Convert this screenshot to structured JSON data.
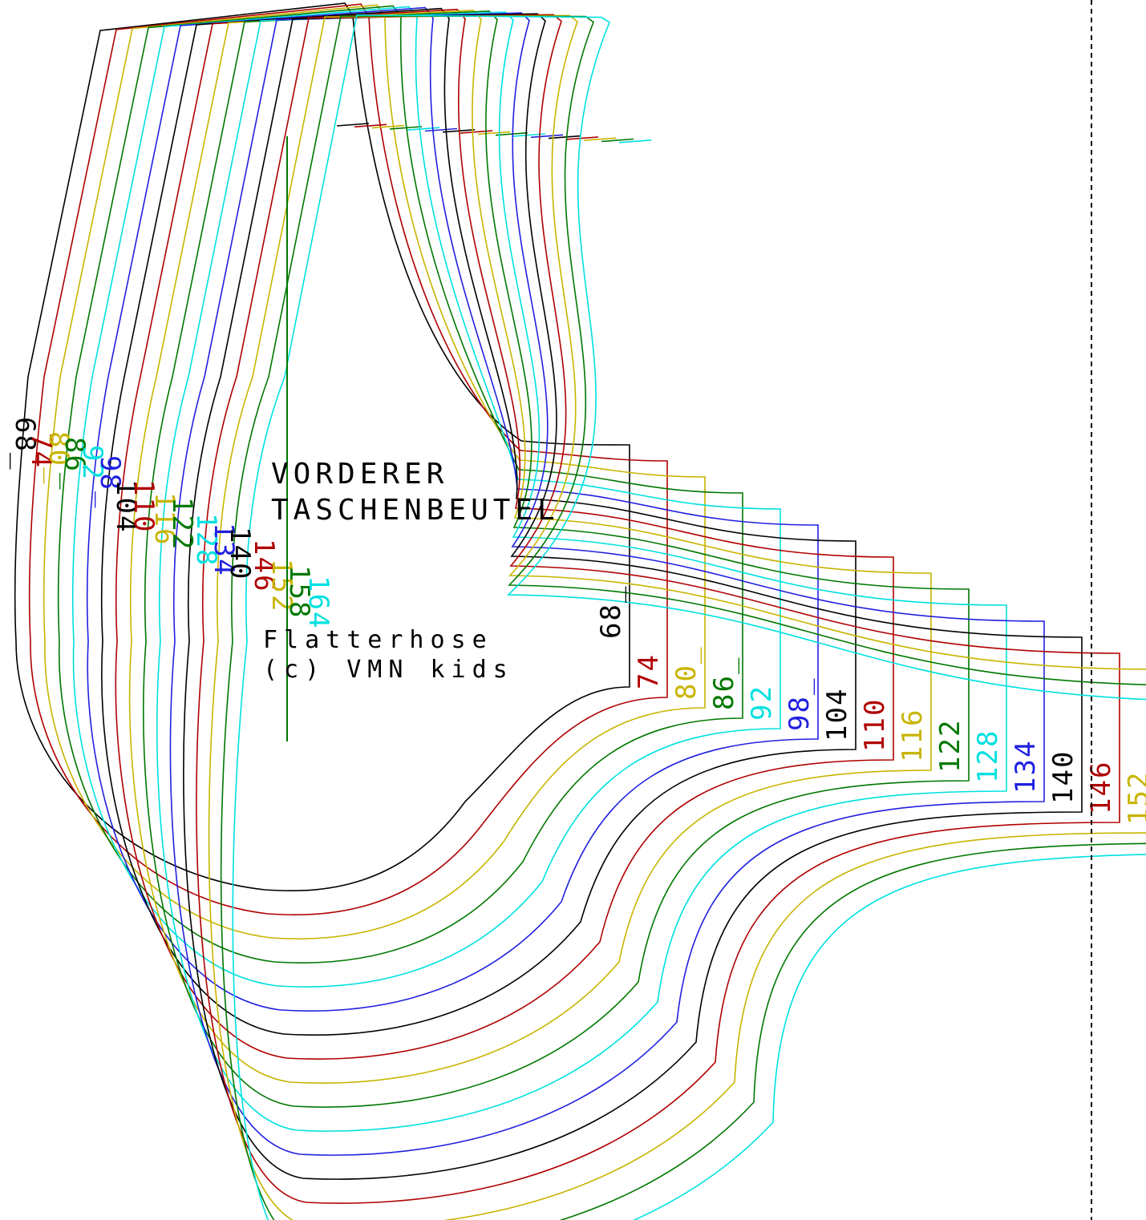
{
  "pattern": {
    "title_line1": "VORDERER",
    "title_line2": "TASCHENBEUTEL",
    "model_name": "Flatterhose",
    "copyright": "(c) VMN kids",
    "sizes": [
      {
        "label": "68_",
        "color": "#000000"
      },
      {
        "label": "74",
        "color": "#b00000"
      },
      {
        "label": "80_",
        "color": "#c8b400"
      },
      {
        "label": "86_",
        "color": "#007800"
      },
      {
        "label": "92",
        "color": "#00e0e0"
      },
      {
        "label": "98_",
        "color": "#2020e0"
      },
      {
        "label": "104",
        "color": "#000000"
      },
      {
        "label": "110",
        "color": "#b00000"
      },
      {
        "label": "116",
        "color": "#c8b400"
      },
      {
        "label": "122",
        "color": "#007800"
      },
      {
        "label": "128",
        "color": "#00e0e0"
      },
      {
        "label": "134",
        "color": "#2020e0"
      },
      {
        "label": "140",
        "color": "#000000"
      },
      {
        "label": "146",
        "color": "#b00000"
      },
      {
        "label": "152",
        "color": "#c8b400"
      },
      {
        "label": "158",
        "color": "#007800"
      },
      {
        "label": "164",
        "color": "#00e0e0"
      }
    ],
    "fold_line": "dashed"
  }
}
